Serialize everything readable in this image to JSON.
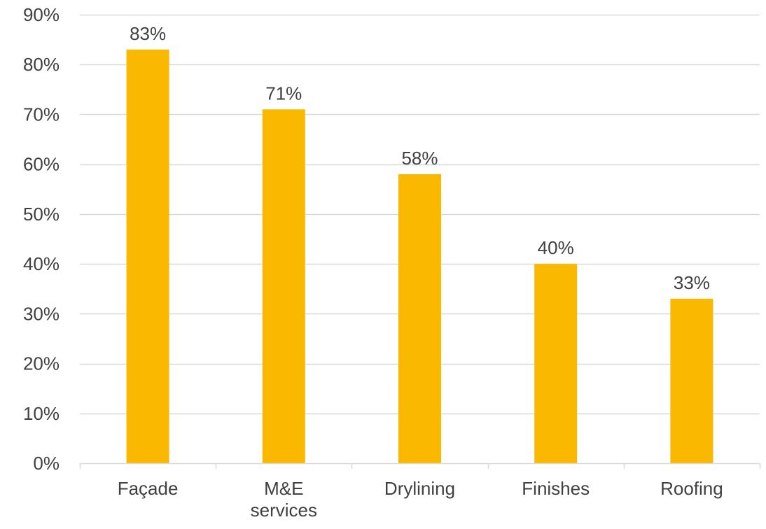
{
  "chart_data": {
    "type": "bar",
    "title": "",
    "xlabel": "",
    "ylabel": "",
    "categories": [
      "Façade",
      "M&E services",
      "Drylining",
      "Finishes",
      "Roofing"
    ],
    "category_lines": [
      [
        "Façade"
      ],
      [
        "M&E",
        "services"
      ],
      [
        "Drylining"
      ],
      [
        "Finishes"
      ],
      [
        "Roofing"
      ]
    ],
    "values": [
      83,
      71,
      58,
      40,
      33
    ],
    "data_labels": [
      "83%",
      "71%",
      "58%",
      "40%",
      "33%"
    ],
    "ylim": [
      0,
      90
    ],
    "yticks": [
      0,
      10,
      20,
      30,
      40,
      50,
      60,
      70,
      80,
      90
    ],
    "ytick_labels": [
      "0%",
      "10%",
      "20%",
      "30%",
      "40%",
      "50%",
      "60%",
      "70%",
      "80%",
      "90%"
    ],
    "grid": true,
    "legend": "none",
    "bar_color": "#FBB800",
    "grid_color": "#D9D9D9",
    "text_color": "#404040"
  }
}
